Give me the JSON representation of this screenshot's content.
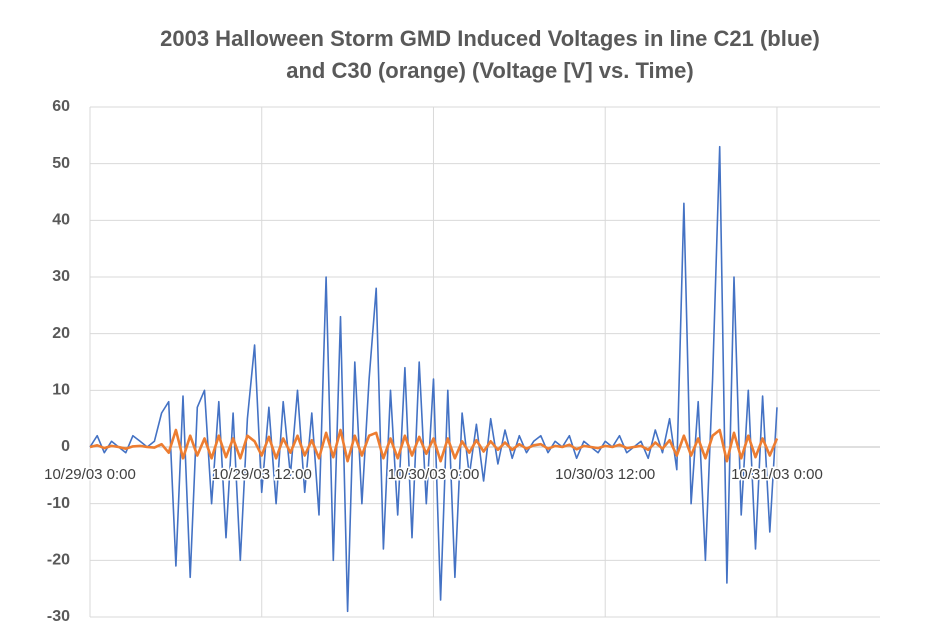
{
  "chart_data": {
    "type": "line",
    "title": [
      "2003 Halloween Storm GMD Induced Voltages in line C21 (blue)",
      "and C30 (orange)  (Voltage [V] vs. Time)"
    ],
    "x": [
      "10/29/03 0:00",
      "10/29/03 0:30",
      "10/29/03 1:00",
      "10/29/03 1:30",
      "10/29/03 2:00",
      "10/29/03 2:30",
      "10/29/03 3:00",
      "10/29/03 3:30",
      "10/29/03 4:00",
      "10/29/03 4:30",
      "10/29/03 5:00",
      "10/29/03 5:30",
      "10/29/03 6:00",
      "10/29/03 6:30",
      "10/29/03 7:00",
      "10/29/03 7:30",
      "10/29/03 8:00",
      "10/29/03 8:30",
      "10/29/03 9:00",
      "10/29/03 9:30",
      "10/29/03 10:00",
      "10/29/03 10:30",
      "10/29/03 11:00",
      "10/29/03 11:30",
      "10/29/03 12:00",
      "10/29/03 12:30",
      "10/29/03 13:00",
      "10/29/03 13:30",
      "10/29/03 14:00",
      "10/29/03 14:30",
      "10/29/03 15:00",
      "10/29/03 15:30",
      "10/29/03 16:00",
      "10/29/03 16:30",
      "10/29/03 17:00",
      "10/29/03 17:30",
      "10/29/03 18:00",
      "10/29/03 18:30",
      "10/29/03 19:00",
      "10/29/03 19:30",
      "10/29/03 20:00",
      "10/29/03 20:30",
      "10/29/03 21:00",
      "10/29/03 21:30",
      "10/29/03 22:00",
      "10/29/03 22:30",
      "10/29/03 23:00",
      "10/29/03 23:30",
      "10/30/03 0:00",
      "10/30/03 0:30",
      "10/30/03 1:00",
      "10/30/03 1:30",
      "10/30/03 2:00",
      "10/30/03 2:30",
      "10/30/03 3:00",
      "10/30/03 3:30",
      "10/30/03 4:00",
      "10/30/03 4:30",
      "10/30/03 5:00",
      "10/30/03 5:30",
      "10/30/03 6:00",
      "10/30/03 6:30",
      "10/30/03 7:00",
      "10/30/03 7:30",
      "10/30/03 8:00",
      "10/30/03 8:30",
      "10/30/03 9:00",
      "10/30/03 9:30",
      "10/30/03 10:00",
      "10/30/03 10:30",
      "10/30/03 11:00",
      "10/30/03 11:30",
      "10/30/03 12:00",
      "10/30/03 12:30",
      "10/30/03 13:00",
      "10/30/03 13:30",
      "10/30/03 14:00",
      "10/30/03 14:30",
      "10/30/03 15:00",
      "10/30/03 15:30",
      "10/30/03 16:00",
      "10/30/03 16:30",
      "10/30/03 17:00",
      "10/30/03 17:30",
      "10/30/03 18:00",
      "10/30/03 18:30",
      "10/30/03 19:00",
      "10/30/03 19:30",
      "10/30/03 20:00",
      "10/30/03 20:30",
      "10/30/03 21:00",
      "10/30/03 21:30",
      "10/30/03 22:00",
      "10/30/03 22:30",
      "10/30/03 23:00",
      "10/30/03 23:30",
      "10/31/03 0:00"
    ],
    "series": [
      {
        "name": "C21",
        "color": "#4472c4",
        "values": [
          0,
          2,
          -1,
          1,
          0,
          -1,
          2,
          1,
          0,
          1,
          6,
          8,
          -21,
          9,
          -23,
          7,
          10,
          -10,
          8,
          -16,
          6,
          -20,
          5,
          18,
          -8,
          7,
          -10,
          8,
          -5,
          10,
          -8,
          6,
          -12,
          30,
          -20,
          23,
          -29,
          15,
          -10,
          12,
          28,
          -18,
          10,
          -12,
          14,
          -16,
          15,
          -10,
          12,
          -27,
          10,
          -23,
          6,
          -5,
          4,
          -6,
          5,
          -3,
          3,
          -2,
          2,
          -1,
          1,
          2,
          -1,
          1,
          0,
          2,
          -2,
          1,
          0,
          -1,
          1,
          0,
          2,
          -1,
          0,
          1,
          -2,
          3,
          -1,
          5,
          -4,
          43,
          -10,
          8,
          -20,
          12,
          53,
          -24,
          30,
          -12,
          10,
          -18,
          9,
          -15,
          7
        ]
      },
      {
        "name": "C30",
        "color": "#ed7d31",
        "values": [
          0,
          0.3,
          -0.2,
          0.2,
          0,
          -0.3,
          0.1,
          0.2,
          0,
          -0.1,
          0.5,
          -1,
          3,
          -2,
          2,
          -1.5,
          1.5,
          -2,
          2,
          -1.8,
          1.5,
          -2,
          2,
          1,
          -1.5,
          1.8,
          -2,
          1.5,
          -1,
          2,
          -1.5,
          1.2,
          -2,
          2.5,
          -1.8,
          3,
          -2.5,
          2,
          -1.5,
          2,
          2.5,
          -2,
          1.5,
          -2,
          2,
          -1.5,
          1.8,
          -1.2,
          1.5,
          -2.5,
          1.5,
          -2,
          1,
          -1,
          1.2,
          -0.8,
          1,
          -0.5,
          0.8,
          -0.5,
          0.5,
          -0.3,
          0.3,
          0.5,
          -0.3,
          0.2,
          0,
          0.4,
          -0.4,
          0.2,
          0,
          -0.2,
          0.2,
          0,
          0.4,
          -0.2,
          0,
          0.2,
          -0.5,
          0.8,
          -0.3,
          1.2,
          -1.5,
          2,
          -1.5,
          1.5,
          -2,
          2,
          3,
          -2.5,
          2.5,
          -2,
          2,
          -1.8,
          1.5,
          -1.5,
          1.5
        ]
      }
    ],
    "xlim": [
      "10/29/03 0:00",
      "10/31/03 7:12"
    ],
    "xticks": [
      "10/29/03 0:00",
      "10/29/03 12:00",
      "10/30/03 0:00",
      "10/30/03 12:00",
      "10/31/03 0:00"
    ],
    "ylim": [
      -30,
      60
    ],
    "yticks": [
      -30,
      -20,
      -10,
      0,
      10,
      20,
      30,
      40,
      50,
      60
    ],
    "grid": true
  }
}
